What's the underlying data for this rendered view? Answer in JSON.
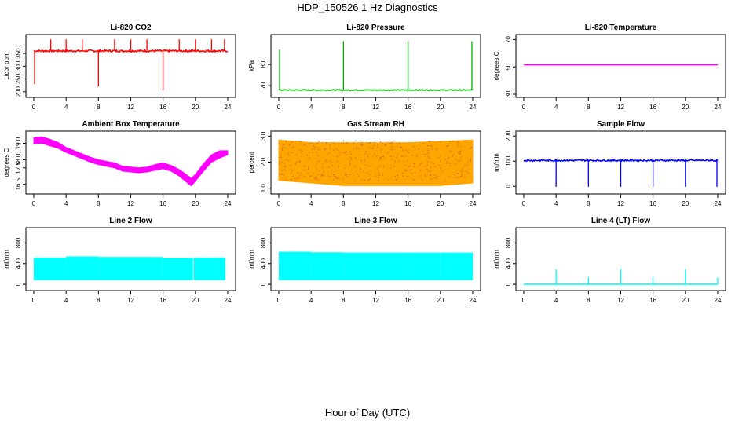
{
  "figure": {
    "title": "HDP_150526  1 Hz Diagnostics",
    "xlabel": "Hour of Day (UTC)"
  },
  "chart_data": [
    {
      "type": "line",
      "title": "Li-820 CO2",
      "ylabel": "Licor ppm",
      "color": "#ff0000",
      "xlim": [
        0,
        24
      ],
      "ylim": [
        190,
        415
      ],
      "xticks": [
        0,
        4,
        8,
        12,
        16,
        20,
        24
      ],
      "yticks": [
        200,
        250,
        300,
        350
      ],
      "baseline": 360,
      "noise": 4,
      "spikes": [
        {
          "x": 0.1,
          "y": 230
        },
        {
          "x": 2.1,
          "y": 405
        },
        {
          "x": 4.0,
          "y": 405
        },
        {
          "x": 6.0,
          "y": 405
        },
        {
          "x": 8.0,
          "y": 220
        },
        {
          "x": 10.0,
          "y": 405
        },
        {
          "x": 12.0,
          "y": 405
        },
        {
          "x": 14.0,
          "y": 405
        },
        {
          "x": 16.0,
          "y": 205
        },
        {
          "x": 18.0,
          "y": 405
        },
        {
          "x": 20.0,
          "y": 405
        },
        {
          "x": 22.0,
          "y": 405
        },
        {
          "x": 23.6,
          "y": 405
        }
      ]
    },
    {
      "type": "line",
      "title": "Li-820 Pressure",
      "ylabel": "kPa",
      "color": "#00b000",
      "xlim": [
        0,
        24
      ],
      "ylim": [
        66,
        93
      ],
      "xticks": [
        0,
        4,
        8,
        12,
        16,
        20,
        24
      ],
      "yticks": [
        70,
        80
      ],
      "baseline": 68,
      "noise": 0.2,
      "spikes": [
        {
          "x": 0.1,
          "y": 87
        },
        {
          "x": 8.0,
          "y": 91
        },
        {
          "x": 16.0,
          "y": 91
        },
        {
          "x": 23.9,
          "y": 91
        }
      ]
    },
    {
      "type": "line",
      "title": "Li-820 Temperature",
      "ylabel": "degrees C",
      "color": "#ff00ff",
      "xlim": [
        0,
        24
      ],
      "ylim": [
        30,
        72
      ],
      "xticks": [
        0,
        4,
        8,
        12,
        16,
        20,
        24
      ],
      "yticks": [
        30,
        50,
        70
      ],
      "baseline": 51.5,
      "noise": 0,
      "spikes": []
    },
    {
      "type": "area",
      "title": "Ambient Box Temperature",
      "ylabel": "degrees C",
      "color": "#ff00ff",
      "xlim": [
        0,
        24
      ],
      "ylim": [
        16.1,
        19.6
      ],
      "xticks": [
        0,
        4,
        8,
        12,
        16,
        20,
        24
      ],
      "yticks": [
        16.5,
        17.5,
        18.0,
        19.0
      ],
      "ytick_labels": [
        "16.5",
        "17.5",
        "18.0",
        "19.0"
      ],
      "x": [
        0,
        1,
        2,
        3,
        4,
        5,
        6,
        7,
        8,
        9,
        10,
        11,
        12,
        13,
        14,
        15,
        16,
        17,
        18,
        19,
        19.5,
        20,
        21,
        22,
        23,
        24
      ],
      "lower": [
        18.95,
        19.0,
        18.85,
        18.7,
        18.45,
        18.25,
        18.05,
        17.85,
        17.7,
        17.6,
        17.5,
        17.3,
        17.25,
        17.2,
        17.25,
        17.35,
        17.45,
        17.3,
        17.0,
        16.6,
        16.4,
        16.7,
        17.3,
        17.85,
        18.1,
        18.3
      ],
      "upper": [
        19.35,
        19.4,
        19.25,
        19.05,
        18.75,
        18.55,
        18.35,
        18.15,
        18.0,
        17.9,
        17.8,
        17.6,
        17.55,
        17.5,
        17.55,
        17.7,
        17.8,
        17.65,
        17.4,
        17.05,
        16.85,
        17.1,
        17.75,
        18.3,
        18.55,
        18.55
      ]
    },
    {
      "type": "area",
      "title": "Gas Stream RH",
      "ylabel": "percent",
      "color": "#ffa500",
      "accent": "#b22222",
      "xlim": [
        0,
        24
      ],
      "ylim": [
        0.9,
        3.1
      ],
      "xticks": [
        0,
        4,
        8,
        12,
        16,
        20,
        24
      ],
      "yticks": [
        1.0,
        2.0,
        3.0
      ],
      "ytick_labels": [
        "1.0",
        "2.0",
        "3.0"
      ],
      "x": [
        0,
        4,
        8,
        12,
        16,
        20,
        24
      ],
      "lower": [
        1.3,
        1.2,
        1.1,
        1.1,
        1.1,
        1.1,
        1.2
      ],
      "upper": [
        2.85,
        2.75,
        2.75,
        2.75,
        2.75,
        2.8,
        2.85
      ]
    },
    {
      "type": "line",
      "title": "Sample Flow",
      "ylabel": "ml/min",
      "color": "#0000ff",
      "xlim": [
        0,
        24
      ],
      "ylim": [
        -18,
        210
      ],
      "xticks": [
        0,
        4,
        8,
        12,
        16,
        20,
        24
      ],
      "yticks": [
        0,
        100,
        200
      ],
      "baseline": 103,
      "noise": 3,
      "spikes": [
        {
          "x": 4.0,
          "y": -2
        },
        {
          "x": 8.0,
          "y": -2
        },
        {
          "x": 12.0,
          "y": -2
        },
        {
          "x": 16.0,
          "y": -2
        },
        {
          "x": 20.0,
          "y": -2
        },
        {
          "x": 23.9,
          "y": -2
        }
      ]
    },
    {
      "type": "area",
      "title": "Line 2 Flow",
      "ylabel": "ml/min",
      "color": "#00ffff",
      "xlim": [
        0,
        24
      ],
      "ylim": [
        -60,
        1050
      ],
      "xticks": [
        0,
        4,
        8,
        12,
        16,
        20,
        24
      ],
      "yticks": [
        0,
        400,
        800
      ],
      "x": [
        0,
        24
      ],
      "lower": [
        80,
        80
      ],
      "upper": [
        520,
        520
      ],
      "ranges": [
        {
          "x0": 0,
          "x1": 4,
          "lo": 80,
          "hi": 520
        },
        {
          "x0": 4,
          "x1": 8,
          "lo": 80,
          "hi": 540
        },
        {
          "x0": 8,
          "x1": 12,
          "lo": 80,
          "hi": 530
        },
        {
          "x0": 12,
          "x1": 16,
          "lo": 80,
          "hi": 530
        },
        {
          "x0": 16,
          "x1": 19.7,
          "lo": 80,
          "hi": 515
        },
        {
          "x0": 19.8,
          "x1": 23.7,
          "lo": 80,
          "hi": 520
        }
      ]
    },
    {
      "type": "area",
      "title": "Line 3 Flow",
      "ylabel": "ml/min",
      "color": "#00ffff",
      "xlim": [
        0,
        24
      ],
      "ylim": [
        -60,
        1050
      ],
      "xticks": [
        0,
        4,
        8,
        12,
        16,
        20,
        24
      ],
      "yticks": [
        0,
        400,
        800
      ],
      "x": [
        0,
        24
      ],
      "lower": [
        80,
        80
      ],
      "upper": [
        610,
        610
      ],
      "ranges": [
        {
          "x0": 0,
          "x1": 4,
          "lo": 80,
          "hi": 630
        },
        {
          "x0": 4,
          "x1": 8,
          "lo": 80,
          "hi": 620
        },
        {
          "x0": 8,
          "x1": 12,
          "lo": 80,
          "hi": 615
        },
        {
          "x0": 12,
          "x1": 16,
          "lo": 80,
          "hi": 615
        },
        {
          "x0": 16,
          "x1": 20,
          "lo": 80,
          "hi": 615
        },
        {
          "x0": 20,
          "x1": 24,
          "lo": 80,
          "hi": 615
        }
      ]
    },
    {
      "type": "line",
      "title": "Line 4 (LT) Flow",
      "ylabel": "ml/min",
      "color": "#00ffff",
      "xlim": [
        0,
        24
      ],
      "ylim": [
        -60,
        1050
      ],
      "xticks": [
        0,
        4,
        8,
        12,
        16,
        20,
        24
      ],
      "yticks": [
        0,
        400,
        800
      ],
      "baseline": 2,
      "noise": 0,
      "spikes": [
        {
          "x": 4.0,
          "y": 290
        },
        {
          "x": 8.0,
          "y": 140
        },
        {
          "x": 12.0,
          "y": 300
        },
        {
          "x": 16.0,
          "y": 140
        },
        {
          "x": 20.0,
          "y": 290
        },
        {
          "x": 24.0,
          "y": 130
        }
      ]
    }
  ]
}
